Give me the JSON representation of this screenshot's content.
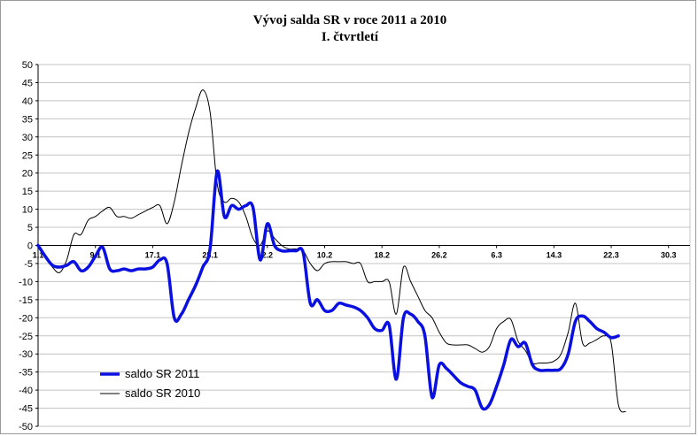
{
  "chart_data": {
    "type": "line",
    "title": "Vývoj salda SR v roce 2011 a 2010",
    "subtitle": "I. čtvrtletí",
    "xlabel": "",
    "ylabel": "",
    "ylim": [
      -50,
      50
    ],
    "yticks": [
      50,
      45,
      40,
      35,
      30,
      25,
      20,
      15,
      10,
      5,
      0,
      -5,
      -10,
      -15,
      -20,
      -25,
      -30,
      -35,
      -40,
      -45,
      -50
    ],
    "x_tick_labels": [
      "1.1",
      "9.1",
      "17.1",
      "25.1",
      "2.2",
      "10.2",
      "18.2",
      "26.2",
      "6.3",
      "14.3",
      "22.3",
      "30.3"
    ],
    "x_tick_days": [
      1,
      9,
      17,
      25,
      33,
      41,
      49,
      57,
      65,
      73,
      81,
      89
    ],
    "xlim": [
      1,
      92
    ],
    "grid": "horizontal",
    "legend": "bottom-left",
    "series": [
      {
        "name": "saldo SR 2011",
        "color": "#0a10e0",
        "width": 3.5,
        "points": [
          [
            1,
            0
          ],
          [
            2,
            -3
          ],
          [
            3,
            -5.5
          ],
          [
            4,
            -6
          ],
          [
            5,
            -5.5
          ],
          [
            6,
            -4.5
          ],
          [
            7,
            -7
          ],
          [
            8,
            -6
          ],
          [
            9,
            -3
          ],
          [
            10,
            -0.5
          ],
          [
            11,
            -6.5
          ],
          [
            12,
            -7
          ],
          [
            13,
            -6.5
          ],
          [
            14,
            -7
          ],
          [
            15,
            -6.5
          ],
          [
            16,
            -6.5
          ],
          [
            17,
            -6
          ],
          [
            18,
            -4
          ],
          [
            19,
            -5
          ],
          [
            20,
            -20
          ],
          [
            21,
            -19
          ],
          [
            22,
            -15
          ],
          [
            23,
            -11
          ],
          [
            24,
            -6
          ],
          [
            25,
            -1
          ],
          [
            26,
            20.5
          ],
          [
            27,
            8
          ],
          [
            28,
            11
          ],
          [
            29,
            10
          ],
          [
            30,
            11
          ],
          [
            31,
            10.5
          ],
          [
            32,
            -4
          ],
          [
            33,
            6
          ],
          [
            34,
            0
          ],
          [
            35,
            -1.5
          ],
          [
            36,
            -1.5
          ],
          [
            37,
            -1.5
          ],
          [
            38,
            -2
          ],
          [
            39,
            -16
          ],
          [
            40,
            -15
          ],
          [
            41,
            -18
          ],
          [
            42,
            -18
          ],
          [
            43,
            -16
          ],
          [
            44,
            -16.5
          ],
          [
            45,
            -17
          ],
          [
            46,
            -18
          ],
          [
            47,
            -20
          ],
          [
            48,
            -23
          ],
          [
            49,
            -23.5
          ],
          [
            50,
            -22
          ],
          [
            51,
            -37
          ],
          [
            52,
            -20
          ],
          [
            53,
            -19
          ],
          [
            54,
            -21
          ],
          [
            55,
            -25
          ],
          [
            56,
            -42
          ],
          [
            57,
            -33
          ],
          [
            58,
            -34
          ],
          [
            59,
            -36
          ],
          [
            60,
            -38
          ],
          [
            61,
            -39
          ],
          [
            62,
            -40
          ],
          [
            63,
            -45
          ],
          [
            64,
            -44
          ],
          [
            65,
            -39
          ],
          [
            66,
            -33
          ],
          [
            67,
            -26
          ],
          [
            68,
            -28
          ],
          [
            69,
            -27
          ],
          [
            70,
            -33
          ],
          [
            71,
            -34.5
          ],
          [
            72,
            -34.5
          ],
          [
            73,
            -34.5
          ],
          [
            74,
            -34
          ],
          [
            75,
            -30
          ],
          [
            76,
            -21
          ],
          [
            77,
            -19.5
          ],
          [
            78,
            -21
          ],
          [
            79,
            -23
          ],
          [
            80,
            -24
          ],
          [
            81,
            -25.5
          ],
          [
            82,
            -25
          ]
        ]
      },
      {
        "name": "saldo SR 2010",
        "color": "#000000",
        "width": 1,
        "points": [
          [
            1,
            0
          ],
          [
            2,
            -3
          ],
          [
            3,
            -6
          ],
          [
            4,
            -7.5
          ],
          [
            5,
            -4
          ],
          [
            6,
            3
          ],
          [
            7,
            3
          ],
          [
            8,
            7
          ],
          [
            9,
            8
          ],
          [
            10,
            9.5
          ],
          [
            11,
            10.5
          ],
          [
            12,
            8
          ],
          [
            13,
            8
          ],
          [
            14,
            7.5
          ],
          [
            15,
            8.5
          ],
          [
            16,
            9.5
          ],
          [
            17,
            10.5
          ],
          [
            18,
            11
          ],
          [
            19,
            6
          ],
          [
            20,
            12
          ],
          [
            21,
            22
          ],
          [
            22,
            31
          ],
          [
            23,
            38
          ],
          [
            24,
            43
          ],
          [
            25,
            37
          ],
          [
            26,
            17
          ],
          [
            27,
            12
          ],
          [
            28,
            13
          ],
          [
            29,
            12
          ],
          [
            30,
            8
          ],
          [
            31,
            2
          ],
          [
            32,
            0
          ],
          [
            33,
            4
          ],
          [
            34,
            2
          ],
          [
            35,
            0
          ],
          [
            36,
            -1
          ],
          [
            37,
            -1
          ],
          [
            38,
            -1.5
          ],
          [
            39,
            -5
          ],
          [
            40,
            -7
          ],
          [
            41,
            -5
          ],
          [
            42,
            -4.5
          ],
          [
            43,
            -4.5
          ],
          [
            44,
            -4.5
          ],
          [
            45,
            -5
          ],
          [
            46,
            -5
          ],
          [
            47,
            -10
          ],
          [
            48,
            -10
          ],
          [
            49,
            -10
          ],
          [
            50,
            -10
          ],
          [
            51,
            -19
          ],
          [
            52,
            -6
          ],
          [
            53,
            -10
          ],
          [
            54,
            -14
          ],
          [
            55,
            -18
          ],
          [
            56,
            -20
          ],
          [
            57,
            -24
          ],
          [
            58,
            -27
          ],
          [
            59,
            -27.5
          ],
          [
            60,
            -27.5
          ],
          [
            61,
            -27.5
          ],
          [
            62,
            -28.5
          ],
          [
            63,
            -29.5
          ],
          [
            64,
            -28
          ],
          [
            65,
            -23
          ],
          [
            66,
            -21
          ],
          [
            67,
            -20.5
          ],
          [
            68,
            -26.5
          ],
          [
            69,
            -29
          ],
          [
            70,
            -32.5
          ],
          [
            71,
            -32.5
          ],
          [
            72,
            -32.5
          ],
          [
            73,
            -32
          ],
          [
            74,
            -30
          ],
          [
            75,
            -24
          ],
          [
            76,
            -16
          ],
          [
            77,
            -27
          ],
          [
            78,
            -27
          ],
          [
            79,
            -26
          ],
          [
            80,
            -25
          ],
          [
            81,
            -27
          ],
          [
            82,
            -44
          ],
          [
            83,
            -46
          ]
        ]
      }
    ]
  }
}
